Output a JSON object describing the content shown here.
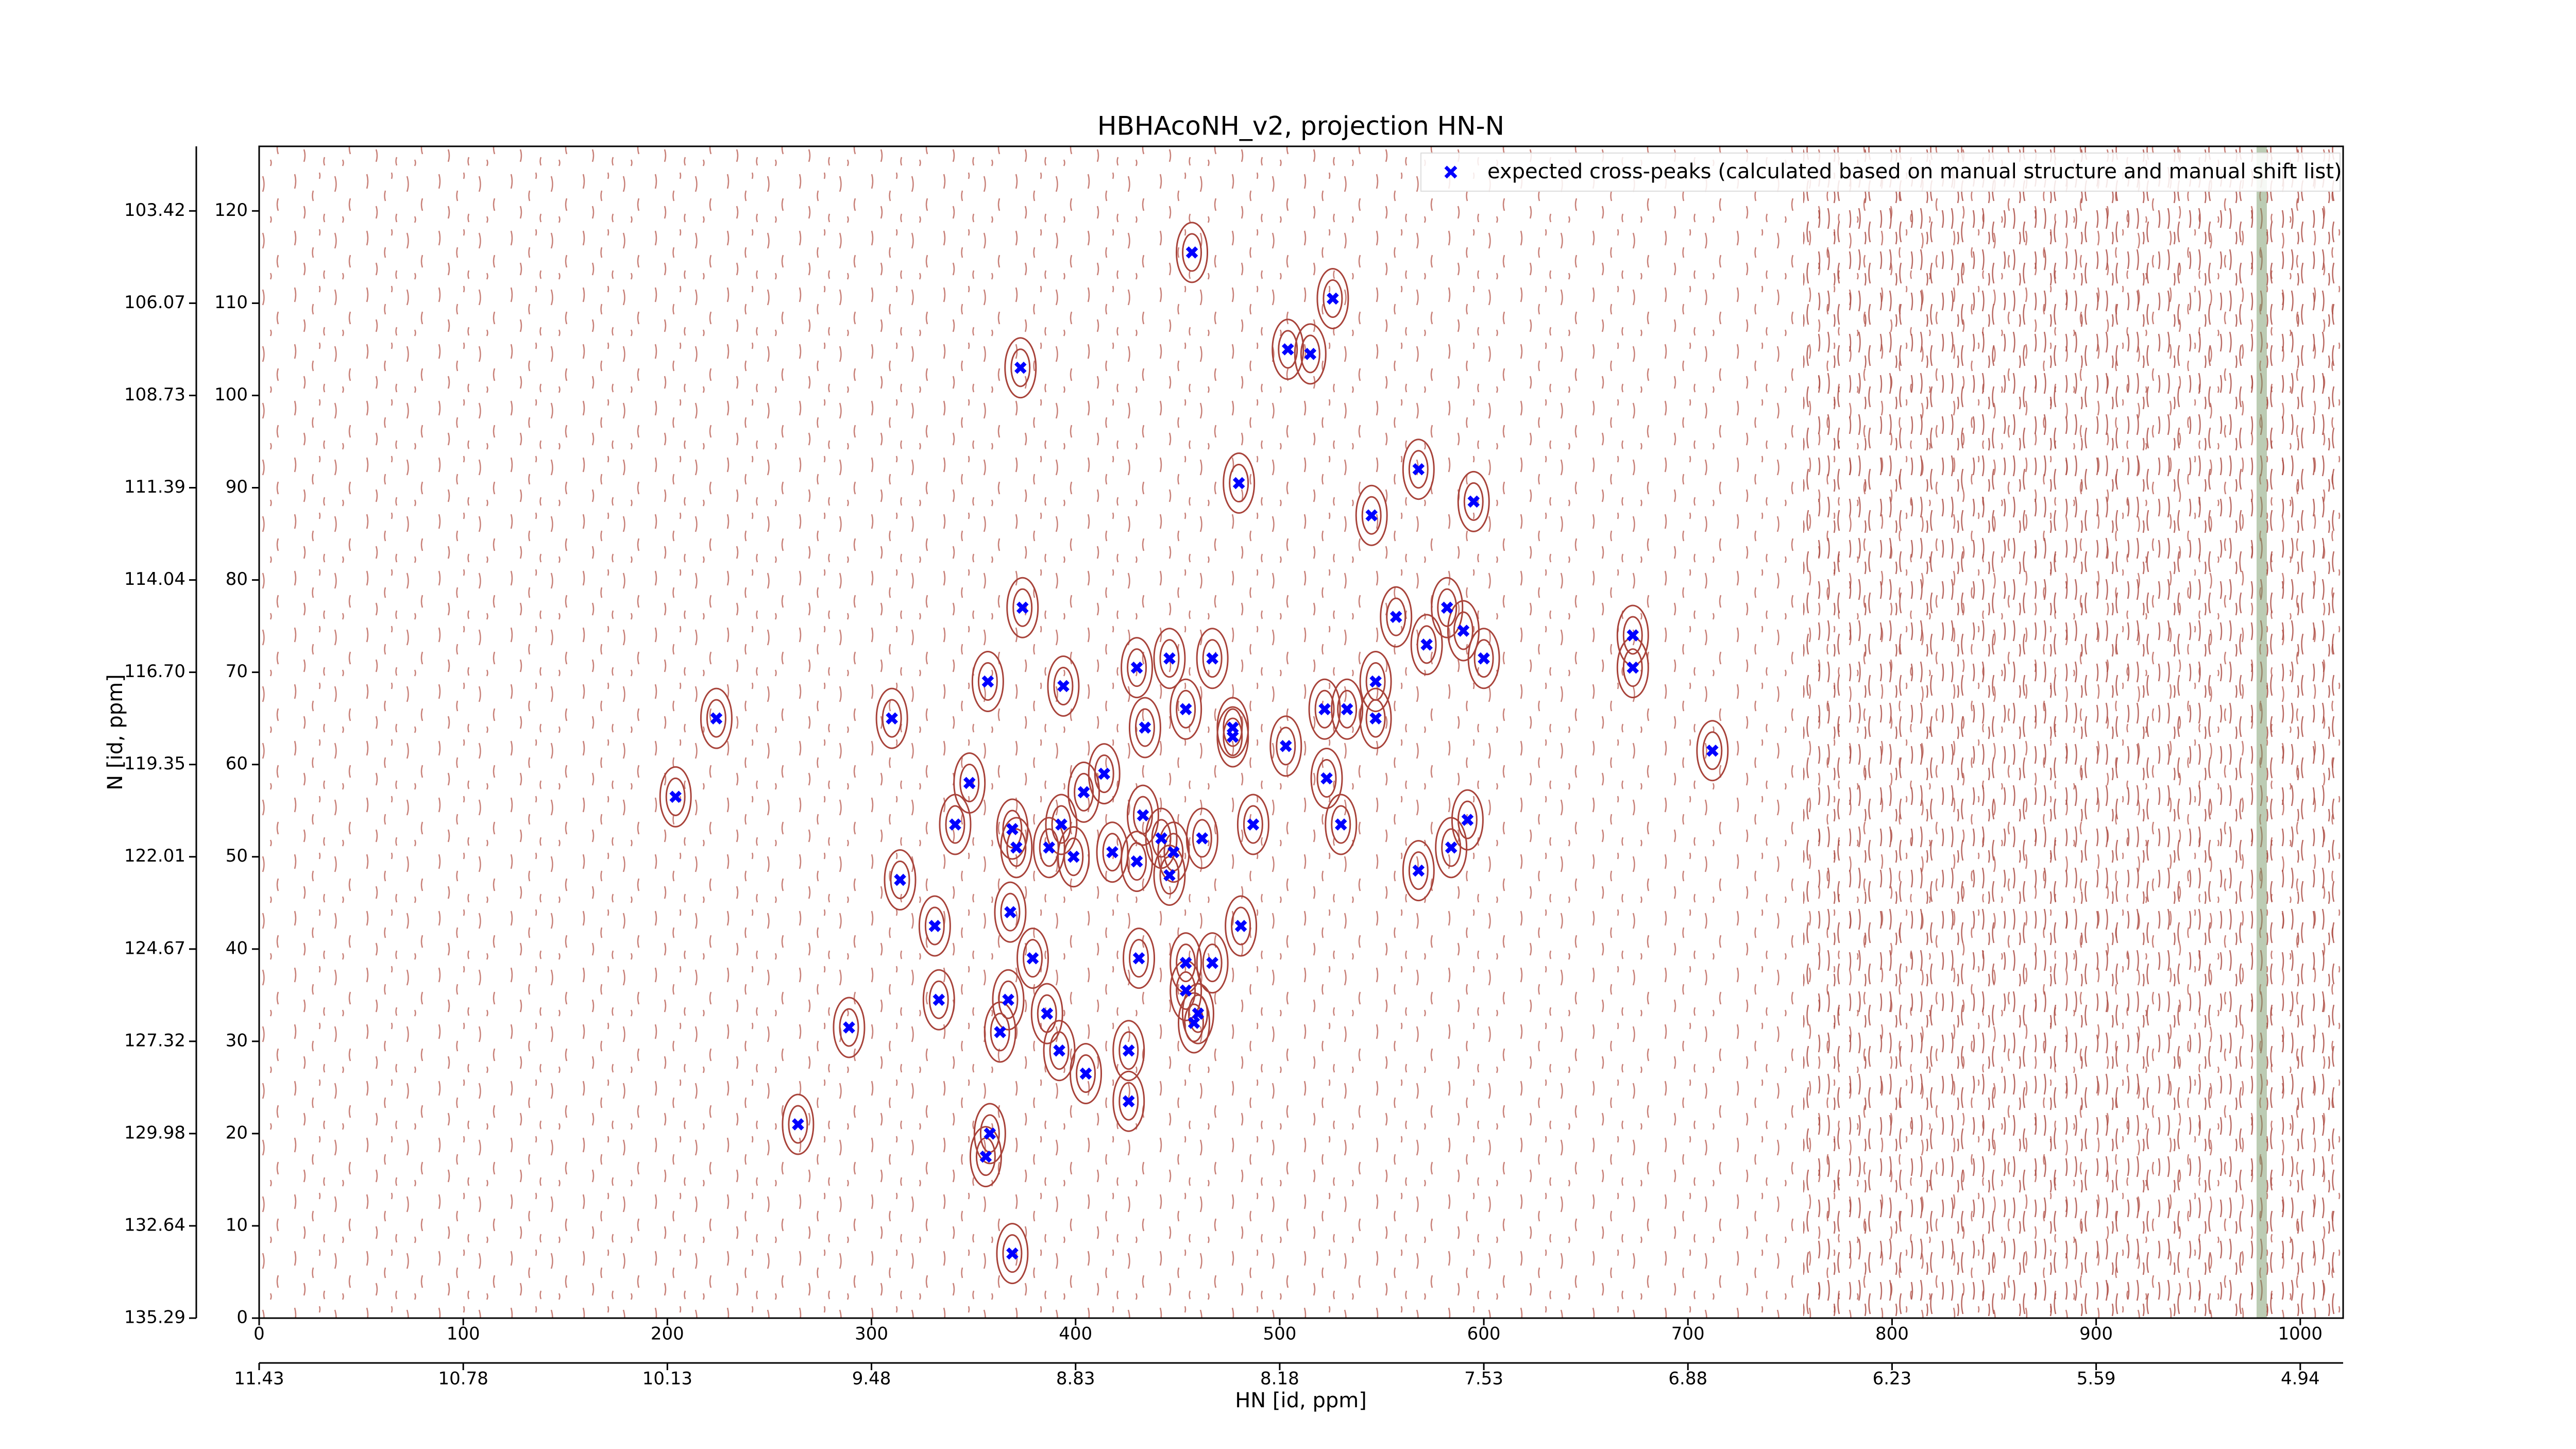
{
  "chart_data": {
    "type": "scatter",
    "title": "HBHAcoNH_v2, projection HN-N",
    "x_label": "HN [id, ppm]",
    "y_label": "N [id, ppm]",
    "legend_label": "expected cross-peaks (calculated based on manual structure and manual shift list)",
    "legend_position": "upper right",
    "color": "#0000ff",
    "x": [
      457,
      526,
      504,
      515,
      373,
      480,
      568,
      595,
      545,
      374,
      557,
      582,
      590,
      572,
      600,
      673,
      673,
      446,
      467,
      430,
      357,
      394,
      547,
      454,
      522,
      533,
      547,
      224,
      310,
      434,
      477,
      477,
      503,
      712,
      414,
      348,
      523,
      404,
      204,
      433,
      393,
      592,
      341,
      369,
      487,
      530,
      442,
      462,
      371,
      387,
      418,
      584,
      448,
      399,
      430,
      446,
      568,
      314,
      368,
      331,
      481,
      379,
      431,
      454,
      467,
      454,
      367,
      333,
      386,
      460,
      458,
      289,
      363,
      426,
      392,
      405,
      426,
      264,
      358,
      356,
      369
    ],
    "y": [
      115.5,
      110.5,
      105,
      104.5,
      103,
      90.5,
      92,
      88.5,
      87,
      77,
      76,
      77,
      74.5,
      73,
      71.5,
      74,
      70.5,
      71.5,
      71.5,
      70.5,
      69,
      68.5,
      69,
      66,
      66,
      66,
      65,
      65,
      65,
      64,
      64,
      63,
      62,
      61.5,
      59,
      58,
      58.5,
      57,
      56.5,
      54.5,
      53.5,
      54,
      53.5,
      53,
      53.5,
      53.5,
      52,
      52,
      51,
      51,
      50.5,
      51,
      50.5,
      50,
      49.5,
      48,
      48.5,
      47.5,
      44,
      42.5,
      42.5,
      39,
      39,
      38.5,
      38.5,
      35.5,
      34.5,
      34.5,
      33,
      33,
      32,
      31.5,
      31,
      29,
      29,
      26.5,
      23.5,
      21,
      20,
      17.5,
      7
    ],
    "xlim": [
      0,
      1021
    ],
    "ylim": [
      0,
      127
    ],
    "xticks": [
      0,
      100,
      200,
      300,
      400,
      500,
      600,
      700,
      800,
      900,
      1000
    ],
    "yticks": [
      0,
      10,
      20,
      30,
      40,
      50,
      60,
      70,
      80,
      90,
      100,
      110,
      120
    ],
    "x2ticks": [
      {
        "value": 0,
        "label": "11.43"
      },
      {
        "value": 100,
        "label": "10.78"
      },
      {
        "value": 200,
        "label": "10.13"
      },
      {
        "value": 300,
        "label": "9.48"
      },
      {
        "value": 400,
        "label": "8.83"
      },
      {
        "value": 500,
        "label": "8.18"
      },
      {
        "value": 600,
        "label": "7.53"
      },
      {
        "value": 700,
        "label": "6.88"
      },
      {
        "value": 800,
        "label": "6.23"
      },
      {
        "value": 900,
        "label": "5.59"
      },
      {
        "value": 1000,
        "label": "4.94"
      }
    ],
    "y2ticks": [
      {
        "value": 0,
        "label": "135.29"
      },
      {
        "value": 10,
        "label": "132.64"
      },
      {
        "value": 20,
        "label": "129.98"
      },
      {
        "value": 30,
        "label": "127.32"
      },
      {
        "value": 40,
        "label": "124.67"
      },
      {
        "value": 50,
        "label": "122.01"
      },
      {
        "value": 60,
        "label": "119.35"
      },
      {
        "value": 70,
        "label": "116.70"
      },
      {
        "value": 80,
        "label": "114.04"
      },
      {
        "value": 90,
        "label": "111.39"
      },
      {
        "value": 100,
        "label": "108.73"
      },
      {
        "value": 110,
        "label": "106.07"
      },
      {
        "value": 120,
        "label": "103.42"
      }
    ]
  }
}
